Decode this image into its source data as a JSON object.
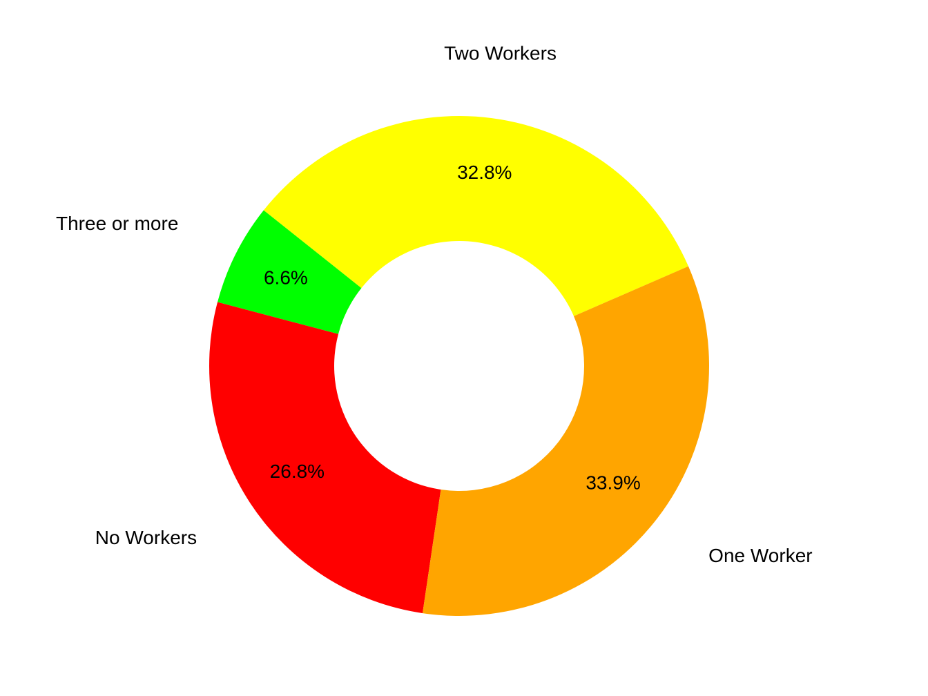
{
  "chart_data": {
    "type": "pie",
    "variant": "donut",
    "title": "",
    "slices": [
      {
        "label": "Two Workers",
        "value": 32.8,
        "percent_label": "32.8%",
        "color": "#FFFF00"
      },
      {
        "label": "Three or more",
        "value": 6.6,
        "percent_label": "6.6%",
        "color": "#00FF00"
      },
      {
        "label": "No Workers",
        "value": 26.8,
        "percent_label": "26.8%",
        "color": "#FF0000"
      },
      {
        "label": "One Worker",
        "value": 33.9,
        "percent_label": "33.9%",
        "color": "#FFA500"
      }
    ],
    "legend": "none",
    "direction": "clockwise"
  }
}
